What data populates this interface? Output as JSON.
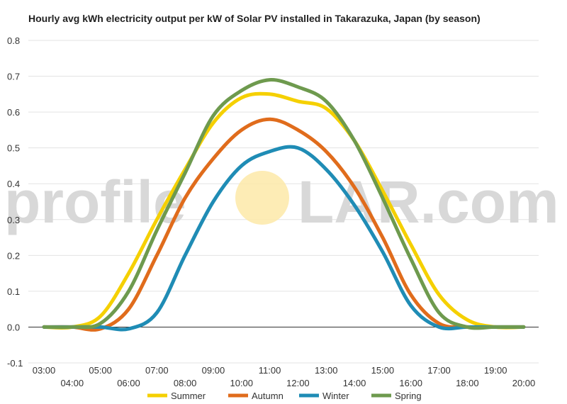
{
  "chart_data": {
    "type": "line",
    "title": "Hourly avg kWh electricity output per kW of Solar PV installed in Takarazuka, Japan (by season)",
    "x": [
      "03:00",
      "04:00",
      "05:00",
      "06:00",
      "07:00",
      "08:00",
      "09:00",
      "10:00",
      "11:00",
      "12:00",
      "13:00",
      "14:00",
      "15:00",
      "16:00",
      "17:00",
      "18:00",
      "19:00",
      "20:00"
    ],
    "ylim": [
      -0.1,
      0.8
    ],
    "yticks": [
      "-0.1",
      "0.0",
      "0.1",
      "0.2",
      "0.3",
      "0.4",
      "0.5",
      "0.6",
      "0.7",
      "0.8"
    ],
    "grid": true,
    "legend_position": "bottom",
    "series": [
      {
        "name": "Summer",
        "color": "#f5d000",
        "values": [
          0.0,
          0.0,
          0.03,
          0.15,
          0.3,
          0.44,
          0.57,
          0.64,
          0.65,
          0.63,
          0.61,
          0.52,
          0.38,
          0.23,
          0.09,
          0.02,
          0.0,
          0.0
        ]
      },
      {
        "name": "Autumn",
        "color": "#e06c1c",
        "values": [
          0.0,
          0.0,
          -0.005,
          0.05,
          0.2,
          0.36,
          0.47,
          0.55,
          0.58,
          0.55,
          0.49,
          0.39,
          0.25,
          0.09,
          0.01,
          0.0,
          0.0,
          0.0
        ]
      },
      {
        "name": "Winter",
        "color": "#1f8cb5",
        "values": [
          0.0,
          0.0,
          0.0,
          -0.005,
          0.04,
          0.2,
          0.35,
          0.45,
          0.49,
          0.5,
          0.44,
          0.34,
          0.21,
          0.06,
          0.0,
          0.0,
          0.0,
          0.0
        ]
      },
      {
        "name": "Spring",
        "color": "#6e9a4e",
        "values": [
          0.0,
          0.0,
          0.01,
          0.1,
          0.27,
          0.43,
          0.59,
          0.66,
          0.69,
          0.67,
          0.63,
          0.52,
          0.36,
          0.19,
          0.04,
          0.0,
          0.0,
          0.0
        ]
      }
    ]
  },
  "watermark": {
    "text_left": "profile",
    "text_right": "LAR.com",
    "sun_color": "#fde9a8"
  }
}
